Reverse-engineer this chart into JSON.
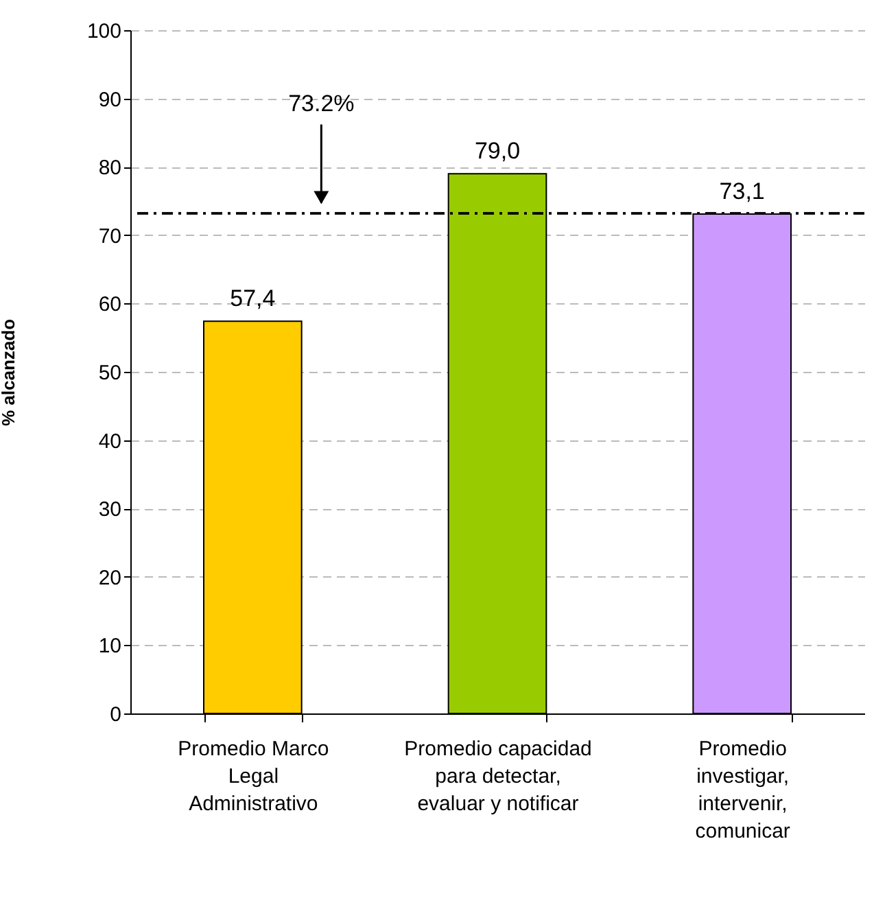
{
  "chart_data": {
    "type": "bar",
    "ylabel": "% alcanzado",
    "categories": [
      "Promedio Marco Legal Administrativo",
      "Promedio capacidad para detectar, evaluar y notificar",
      "Promedio investigar, intervenir, comunicar"
    ],
    "values": [
      57.4,
      79.0,
      73.1
    ],
    "colors": [
      "#ffcc00",
      "#99cc00",
      "#cc99ff"
    ],
    "value_labels": [
      "57,4",
      "79,0",
      "73,1"
    ],
    "ylim": [
      0,
      100
    ],
    "yticks": [
      0,
      10,
      20,
      30,
      40,
      50,
      60,
      70,
      80,
      90,
      100
    ],
    "grid": "y",
    "ref_lines": [
      {
        "axis": "y",
        "value": 73.2,
        "label": "73.2%"
      }
    ]
  }
}
